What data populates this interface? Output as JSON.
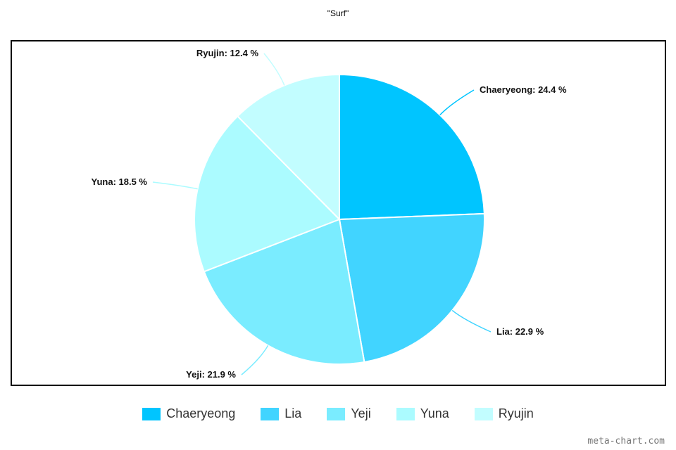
{
  "chart_data": {
    "type": "pie",
    "title": "\"Surf\"",
    "categories": [
      "Chaeryeong",
      "Lia",
      "Yeji",
      "Yuna",
      "Ryujin"
    ],
    "values": [
      24.4,
      22.9,
      21.9,
      18.5,
      12.4
    ],
    "labels": [
      "Chaeryeong: 24.4 %",
      "Lia: 22.9 %",
      "Yeji: 21.9 %",
      "Yuna: 18.5 %",
      "Ryujin: 12.4 %"
    ],
    "colors": [
      "#00c5ff",
      "#41d4ff",
      "#7aecff",
      "#abfbff",
      "#c2fdff"
    ],
    "legend_position": "bottom"
  },
  "watermark": "meta-chart.com"
}
